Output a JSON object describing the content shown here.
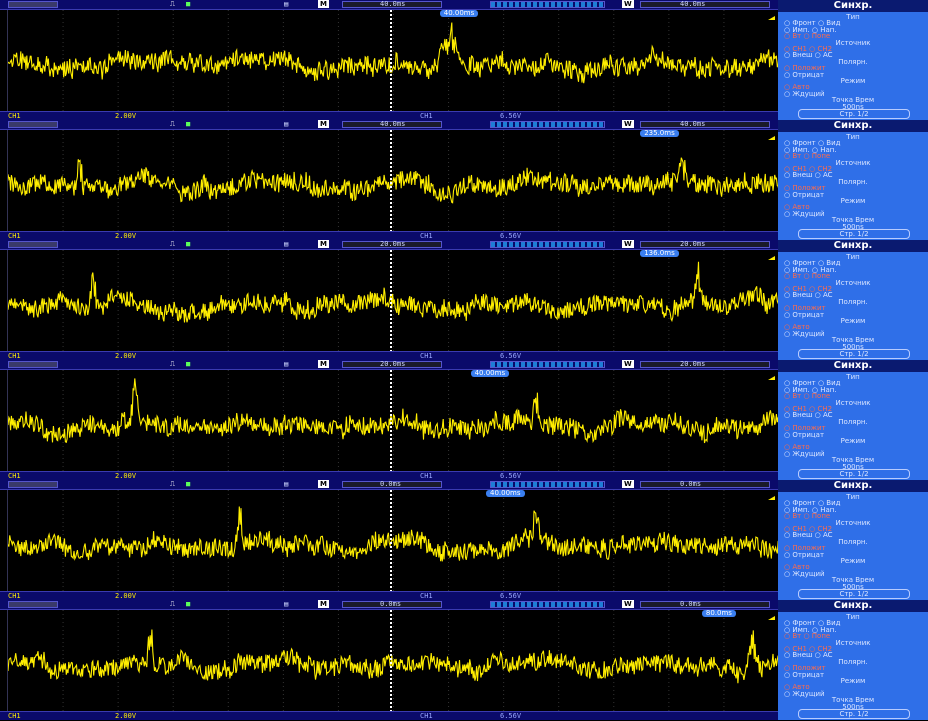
{
  "colors": {
    "trace": "#ffee00",
    "menu_bg": "#2f6fe8",
    "bar_bg": "#0a0a6a",
    "accent_red": "#ff6a4a"
  },
  "menu": {
    "title": "Синхр.",
    "lines": [
      {
        "text": "Тип",
        "style": "center"
      },
      {
        "text": "○ Фронт ○ Вид",
        "style": ""
      },
      {
        "text": "○ Имп.   ○ Нап.",
        "style": ""
      },
      {
        "text": "○ Вт     ○ Попе",
        "style": "red"
      },
      {
        "text": "Источник",
        "style": "center"
      },
      {
        "text": "○ CH1    ○ CH2",
        "style": "red"
      },
      {
        "text": "○ Внеш  ○ AC",
        "style": ""
      },
      {
        "text": "Полярн.",
        "style": "center"
      },
      {
        "text": "○ Положит",
        "style": "red"
      },
      {
        "text": "○ Отрицат",
        "style": ""
      },
      {
        "text": "Режим",
        "style": "center"
      },
      {
        "text": "○ Авто",
        "style": "red"
      },
      {
        "text": "○ Ждущий",
        "style": ""
      },
      {
        "text": "Точка Врем",
        "style": "center"
      },
      {
        "text": "500ns",
        "style": "center"
      }
    ],
    "footer": "Стр.  1/2"
  },
  "panels": [
    {
      "topbar": {
        "timebase_label": "M",
        "timebase": "40.0ms",
        "delay_tag": "40.00ms",
        "window_label": "W",
        "window": "40.0ms"
      },
      "botbar": {
        "ch1": "CH1",
        "scale": "2.00V",
        "trig_label": "CH1",
        "trig_level": "6.56V"
      },
      "seed": 11,
      "spikes": [
        {
          "pos": 0.575,
          "height": 0.92,
          "width": 0.02
        }
      ]
    },
    {
      "topbar": {
        "timebase_label": "M",
        "timebase": "40.0ms",
        "delay_tag": "235.0ms",
        "window_label": "W",
        "window": "40.0ms"
      },
      "botbar": {
        "ch1": "CH1",
        "scale": "2.00V",
        "trig_label": "CH1",
        "trig_level": "6.56V"
      },
      "seed": 23,
      "spikes": [
        {
          "pos": 0.092,
          "height": 0.95,
          "width": 0.006
        },
        {
          "pos": 0.875,
          "height": 0.72,
          "width": 0.006
        }
      ]
    },
    {
      "topbar": {
        "timebase_label": "M",
        "timebase": "20.0ms",
        "delay_tag": "136.0ms",
        "window_label": "W",
        "window": "20.0ms"
      },
      "botbar": {
        "ch1": "CH1",
        "scale": "2.00V",
        "trig_label": "CH1",
        "trig_level": "6.56V"
      },
      "seed": 37,
      "spikes": [
        {
          "pos": 0.11,
          "height": 0.9,
          "width": 0.006
        },
        {
          "pos": 0.895,
          "height": 0.85,
          "width": 0.006
        }
      ]
    },
    {
      "topbar": {
        "timebase_label": "M",
        "timebase": "20.0ms",
        "delay_tag": "40.00ms",
        "window_label": "W",
        "window": "20.0ms"
      },
      "botbar": {
        "ch1": "CH1",
        "scale": "2.00V",
        "trig_label": "CH1",
        "trig_level": "6.56V"
      },
      "seed": 49,
      "spikes": [
        {
          "pos": 0.165,
          "height": 0.9,
          "width": 0.006
        },
        {
          "pos": 0.685,
          "height": 0.88,
          "width": 0.006
        }
      ]
    },
    {
      "topbar": {
        "timebase_label": "M",
        "timebase": "0.0ms",
        "delay_tag": "40.00ms",
        "window_label": "W",
        "window": "0.0ms"
      },
      "botbar": {
        "ch1": "CH1",
        "scale": "2.00V",
        "trig_label": "CH1",
        "trig_level": "6.56V"
      },
      "seed": 61,
      "spikes": [
        {
          "pos": 0.3,
          "height": 0.92,
          "width": 0.006
        },
        {
          "pos": 0.685,
          "height": 0.85,
          "width": 0.006
        }
      ]
    },
    {
      "topbar": {
        "timebase_label": "M",
        "timebase": "0.0ms",
        "delay_tag": "80.0ms",
        "window_label": "W",
        "window": "0.0ms"
      },
      "botbar": {
        "ch1": "CH1",
        "scale": "2.00V",
        "trig_label": "CH1",
        "trig_level": "6.56V"
      },
      "seed": 73,
      "spikes": [
        {
          "pos": 0.185,
          "height": 0.95,
          "width": 0.006
        },
        {
          "pos": 0.965,
          "height": 0.95,
          "width": 0.01
        }
      ]
    }
  ]
}
